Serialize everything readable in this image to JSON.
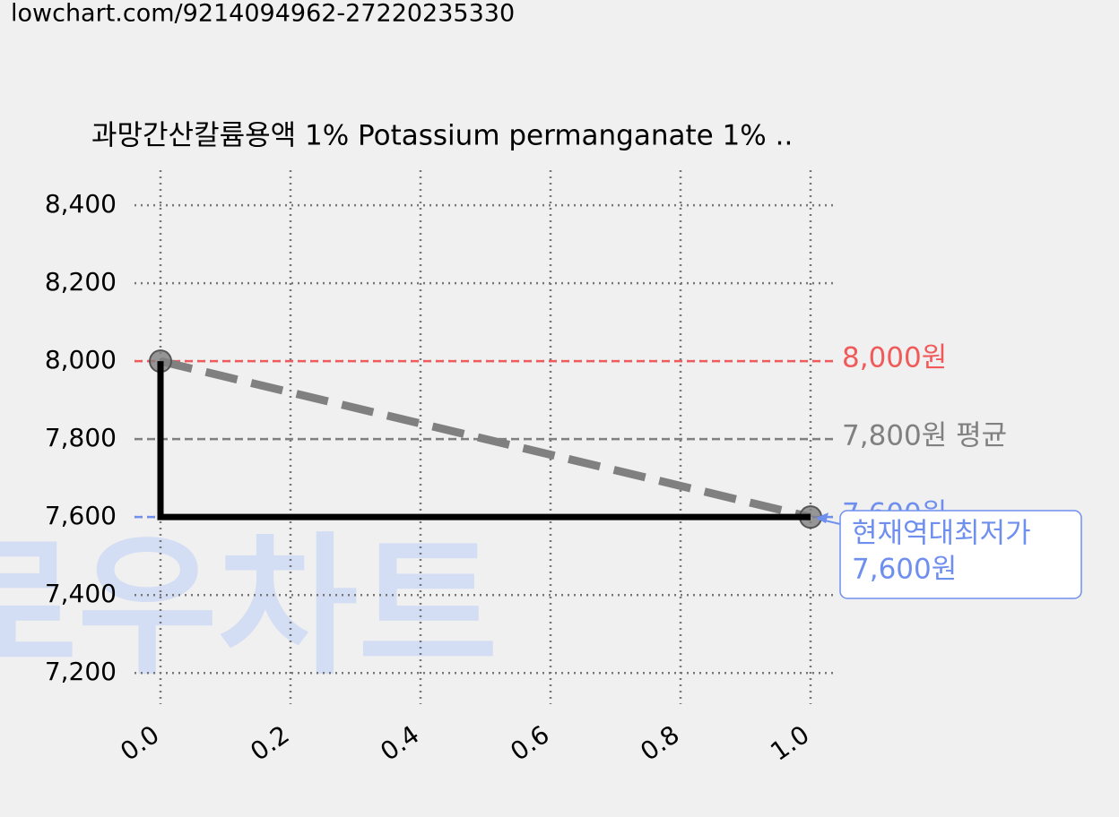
{
  "url": "lowchart.com/9214094962-27220235330",
  "chart_data": {
    "type": "line",
    "title": "과망간산칼륨용액 1% Potassium permanganate 1% ..",
    "watermark": "로우차트",
    "xlim": [
      -0.04,
      1.04
    ],
    "ylim": [
      7120,
      8490
    ],
    "xticks": [
      {
        "value": 0,
        "label": "0.0"
      },
      {
        "value": 0.2,
        "label": "0.2"
      },
      {
        "value": 0.4,
        "label": "0.4"
      },
      {
        "value": 0.6,
        "label": "0.6"
      },
      {
        "value": 0.8,
        "label": "0.8"
      },
      {
        "value": 1,
        "label": "1.0"
      }
    ],
    "yticks": [
      {
        "value": 7200,
        "label": "7,200"
      },
      {
        "value": 7400,
        "label": "7,400"
      },
      {
        "value": 7600,
        "label": "7,600"
      },
      {
        "value": 7800,
        "label": "7,800"
      },
      {
        "value": 8000,
        "label": "8,000"
      },
      {
        "value": 8200,
        "label": "8,200"
      },
      {
        "value": 8400,
        "label": "8,400"
      }
    ],
    "grid": true,
    "series": [
      {
        "x": [
          0,
          1
        ],
        "values": [
          8000,
          7600
        ],
        "color": "#808080",
        "dashed": true,
        "markers": true
      },
      {
        "x": [
          0,
          1
        ],
        "values": [
          8000,
          7600
        ],
        "color": "#000000",
        "step": "pre"
      }
    ],
    "hlines": [
      {
        "value": 8000,
        "label": "8,000원",
        "color": "#f05a5a"
      },
      {
        "value": 7800,
        "label": "7,800원 평균",
        "color": "#808080"
      },
      {
        "value": 7600,
        "label": "7,600원",
        "color": "#6f8fef"
      }
    ],
    "annotation": {
      "x": 1,
      "y": 7600,
      "lines": [
        "현재역대최저가",
        "7,600원"
      ],
      "color": "#6f8fef"
    }
  }
}
